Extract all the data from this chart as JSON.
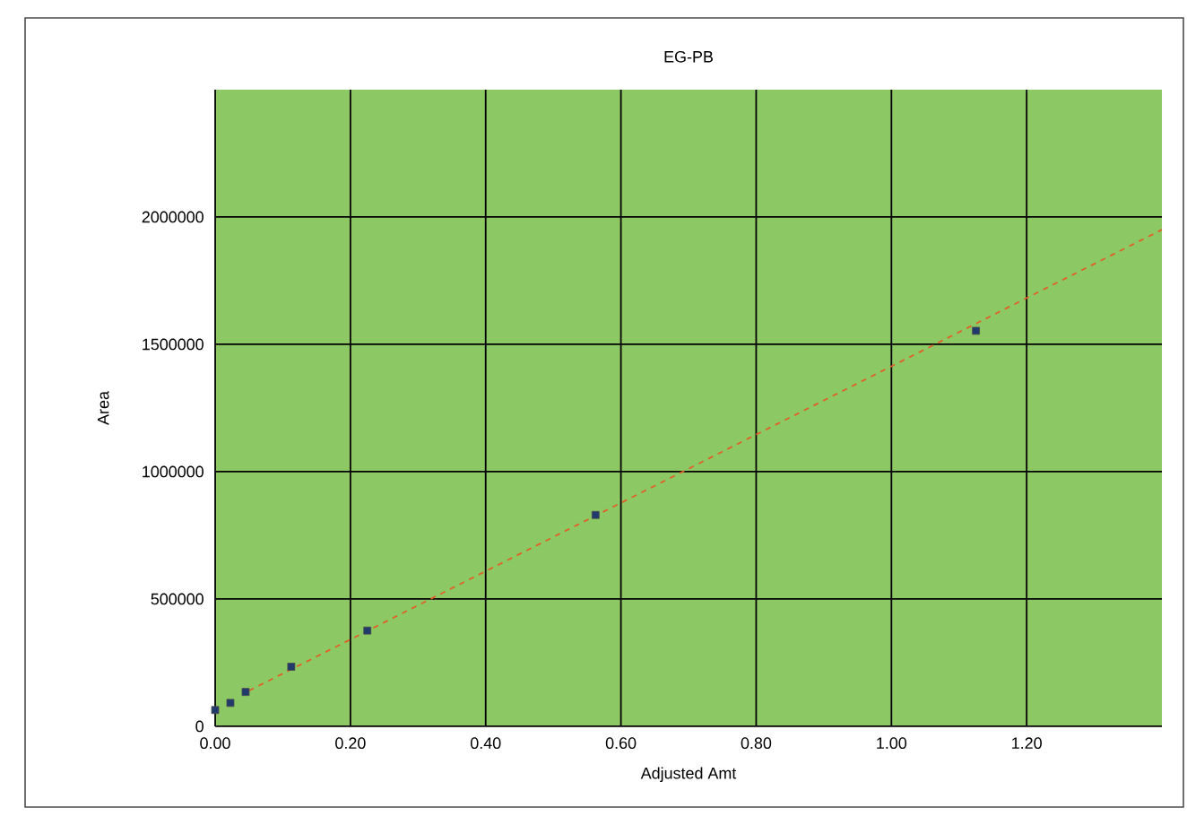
{
  "chart_data": {
    "type": "scatter",
    "title": "EG-PB",
    "xlabel": "Adjusted Amt",
    "ylabel": "Area",
    "xlim": [
      0,
      1.4
    ],
    "ylim": [
      0,
      2500000
    ],
    "xticks": [
      {
        "value": 0,
        "label": "0.00"
      },
      {
        "value": 0.2,
        "label": "0.20"
      },
      {
        "value": 0.4,
        "label": "0.40"
      },
      {
        "value": 0.6,
        "label": "0.60"
      },
      {
        "value": 0.8,
        "label": "0.80"
      },
      {
        "value": 1.0,
        "label": "1.00"
      },
      {
        "value": 1.2,
        "label": "1.20"
      }
    ],
    "yticks": [
      0,
      500000,
      1000000,
      1500000,
      2000000
    ],
    "grid": true,
    "series": [
      {
        "color": "#1f3a6b",
        "marker": "square",
        "x": [
          0.0,
          0.0225,
          0.045,
          0.1125,
          0.225,
          0.5625,
          1.125
        ],
        "values": [
          64000,
          92000,
          135000,
          234000,
          376000,
          830000,
          1553000
        ]
      },
      {
        "type": "line",
        "color": "#e0602a",
        "marker": "none",
        "line_style": "dashed",
        "x": [
          0.05,
          1.4
        ],
        "values": [
          140000,
          1950000
        ]
      }
    ]
  }
}
